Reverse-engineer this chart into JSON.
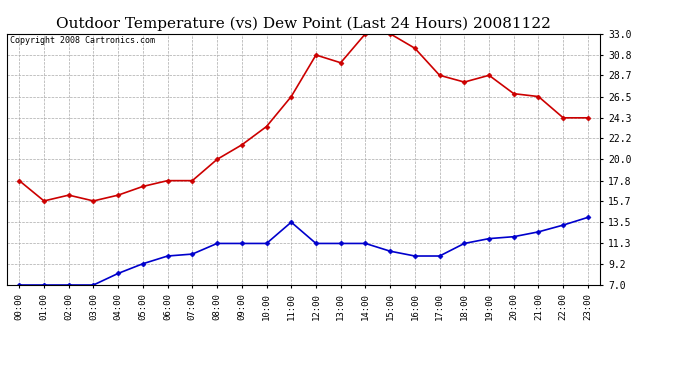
{
  "title": "Outdoor Temperature (vs) Dew Point (Last 24 Hours) 20081122",
  "copyright_text": "Copyright 2008 Cartronics.com",
  "hours": [
    "00:00",
    "01:00",
    "02:00",
    "03:00",
    "04:00",
    "05:00",
    "06:00",
    "07:00",
    "08:00",
    "09:00",
    "10:00",
    "11:00",
    "12:00",
    "13:00",
    "14:00",
    "15:00",
    "16:00",
    "17:00",
    "18:00",
    "19:00",
    "20:00",
    "21:00",
    "22:00",
    "23:00"
  ],
  "temp_values": [
    17.8,
    15.7,
    16.3,
    15.7,
    16.3,
    17.2,
    17.8,
    17.8,
    20.0,
    21.5,
    23.4,
    26.5,
    30.8,
    30.0,
    33.0,
    33.0,
    31.5,
    28.7,
    28.0,
    28.7,
    26.8,
    26.5,
    24.3,
    24.3
  ],
  "dew_values": [
    7.0,
    7.0,
    7.0,
    7.0,
    8.2,
    9.2,
    10.0,
    10.2,
    11.3,
    11.3,
    11.3,
    13.5,
    11.3,
    11.3,
    11.3,
    10.5,
    10.0,
    10.0,
    11.3,
    11.8,
    12.0,
    12.5,
    13.2,
    14.0
  ],
  "temp_color": "#cc0000",
  "dew_color": "#0000cc",
  "bg_color": "#ffffff",
  "grid_color": "#aaaaaa",
  "yticks": [
    7.0,
    9.2,
    11.3,
    13.5,
    15.7,
    17.8,
    20.0,
    22.2,
    24.3,
    26.5,
    28.7,
    30.8,
    33.0
  ],
  "ymin": 7.0,
  "ymax": 33.0,
  "title_fontsize": 11,
  "copyright_fontsize": 6,
  "marker": "D",
  "marker_size": 2.5,
  "linewidth": 1.2
}
